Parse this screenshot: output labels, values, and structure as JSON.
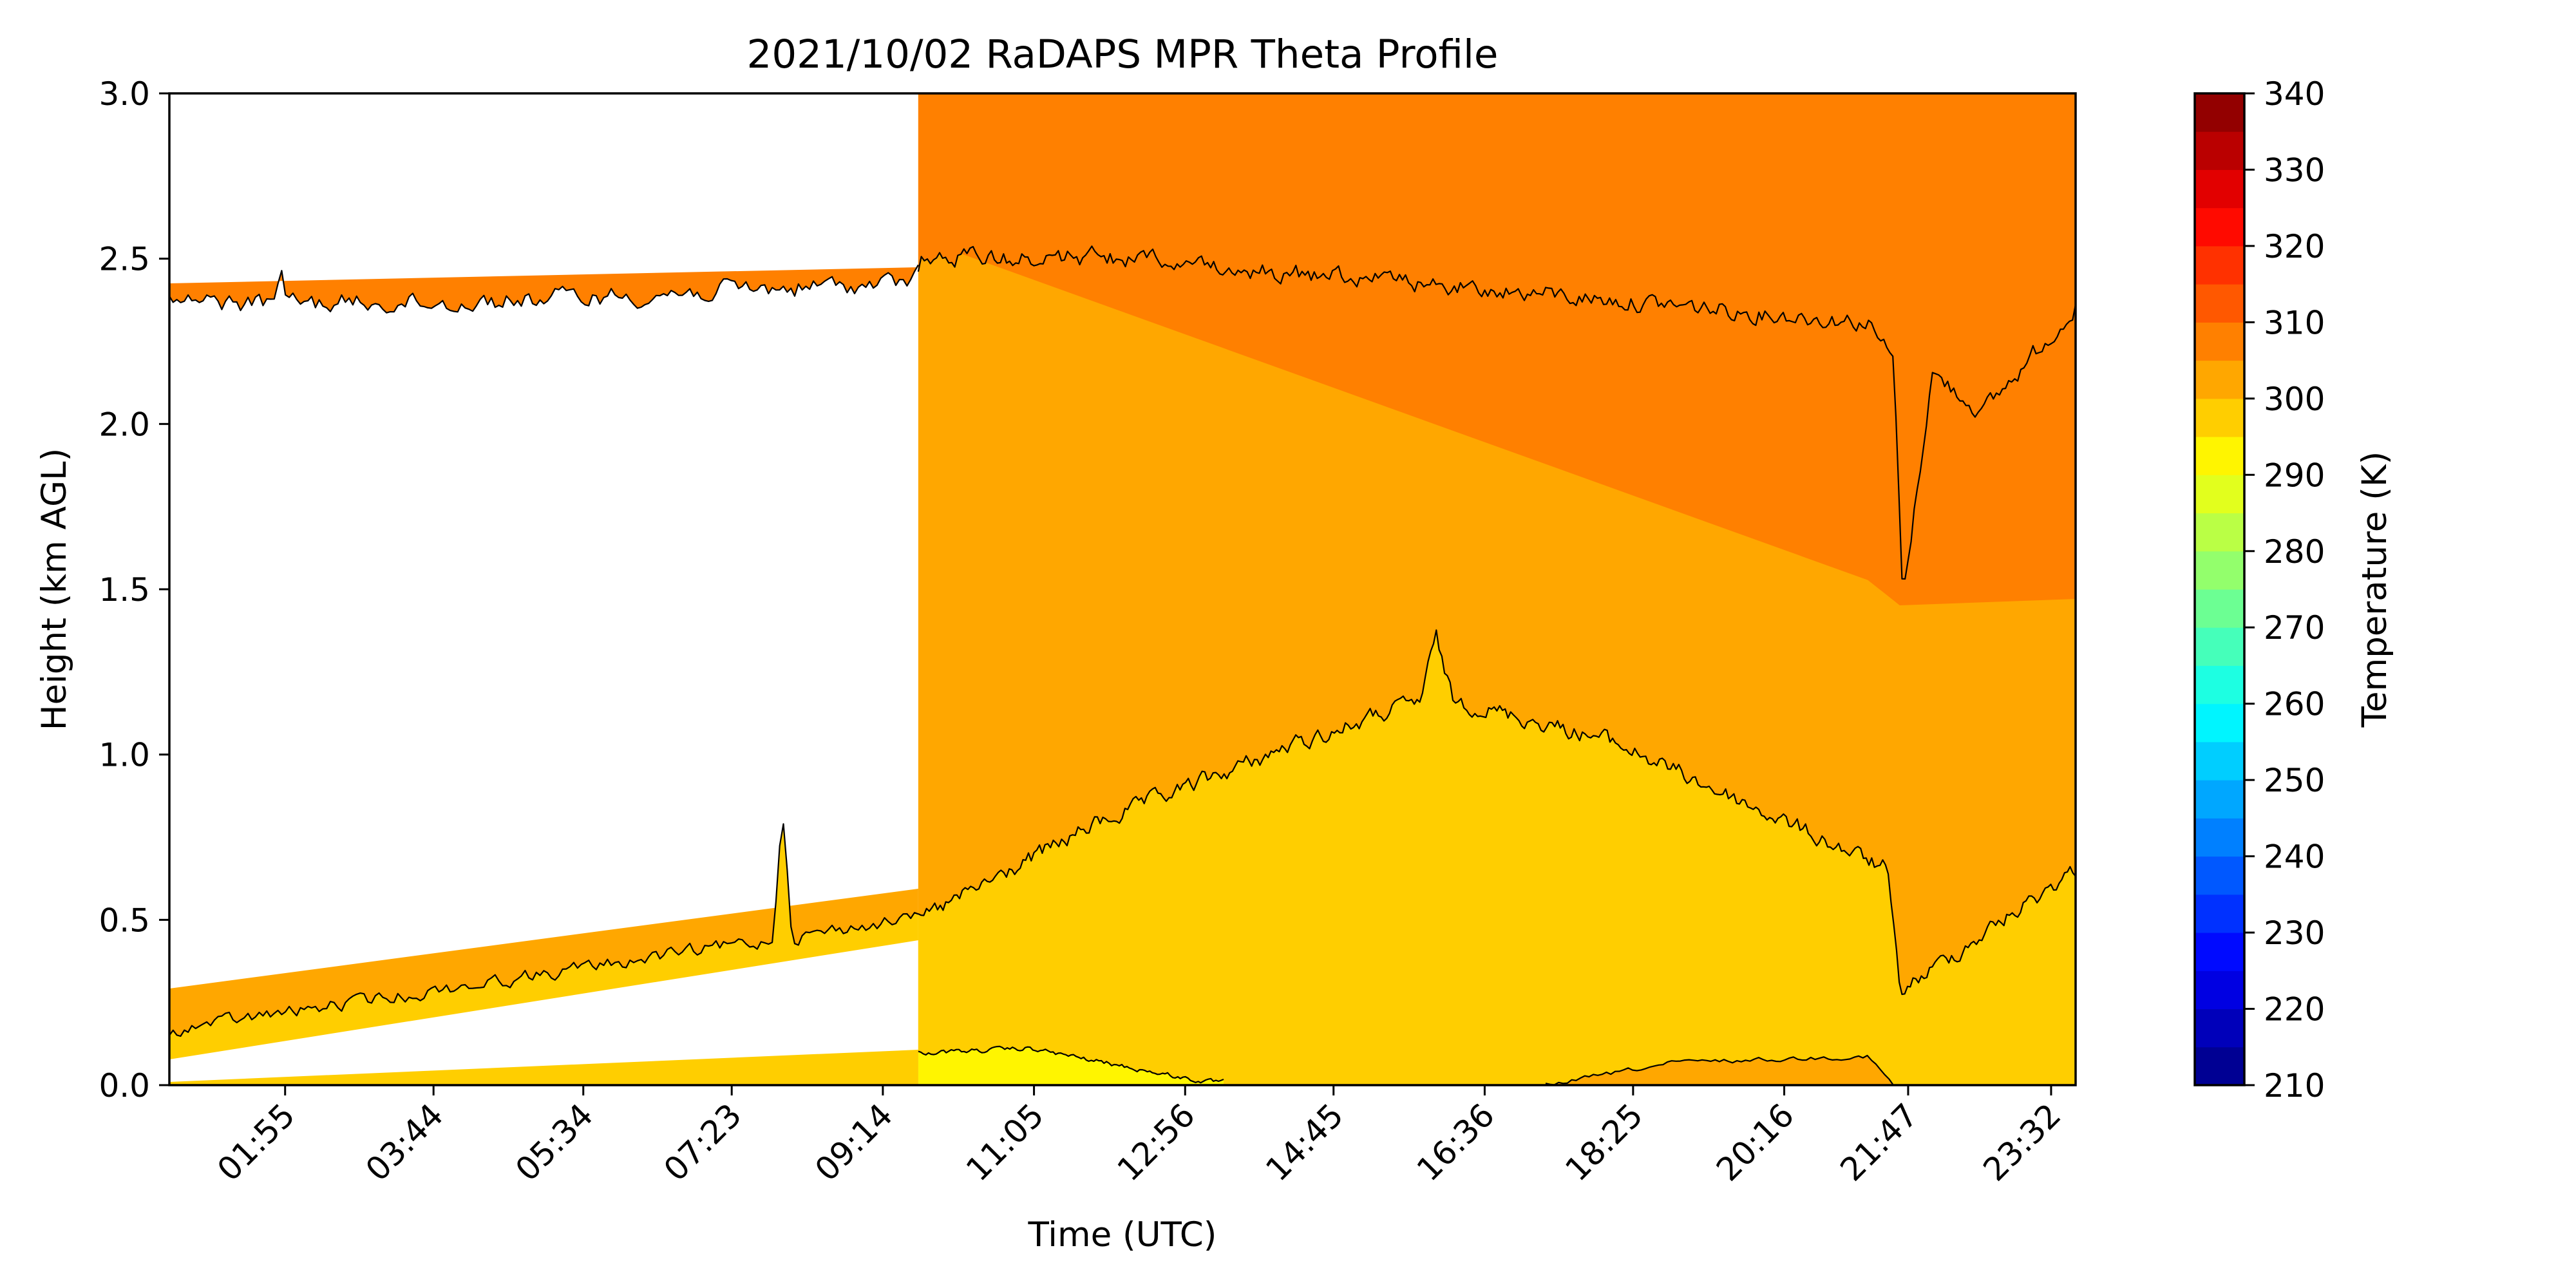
{
  "chart_data": {
    "type": "heatmap",
    "title": "2021/10/02 RaDAPS MPR Theta Profile",
    "xlabel": "Time (UTC)",
    "ylabel": "Height (km AGL)",
    "xlim": [
      "00:30",
      "23:50"
    ],
    "ylim": [
      0,
      3.0
    ],
    "x_ticks": [
      "01:55",
      "03:44",
      "05:34",
      "07:23",
      "09:14",
      "11:05",
      "12:56",
      "14:45",
      "16:36",
      "18:25",
      "20:16",
      "21:47",
      "23:32"
    ],
    "y_ticks": [
      "0.0",
      "0.5",
      "1.0",
      "1.5",
      "2.0",
      "2.5",
      "3.0"
    ],
    "colorbar": {
      "label": "Temperature (K)",
      "range": [
        210,
        340
      ],
      "step": 5,
      "ticks": [
        "210",
        "220",
        "230",
        "240",
        "250",
        "260",
        "270",
        "280",
        "290",
        "300",
        "310",
        "320",
        "330",
        "340"
      ]
    },
    "data_gap": [
      "00:30",
      "09:40"
    ],
    "contour_levels_K": [
      300,
      305,
      310
    ]
  }
}
